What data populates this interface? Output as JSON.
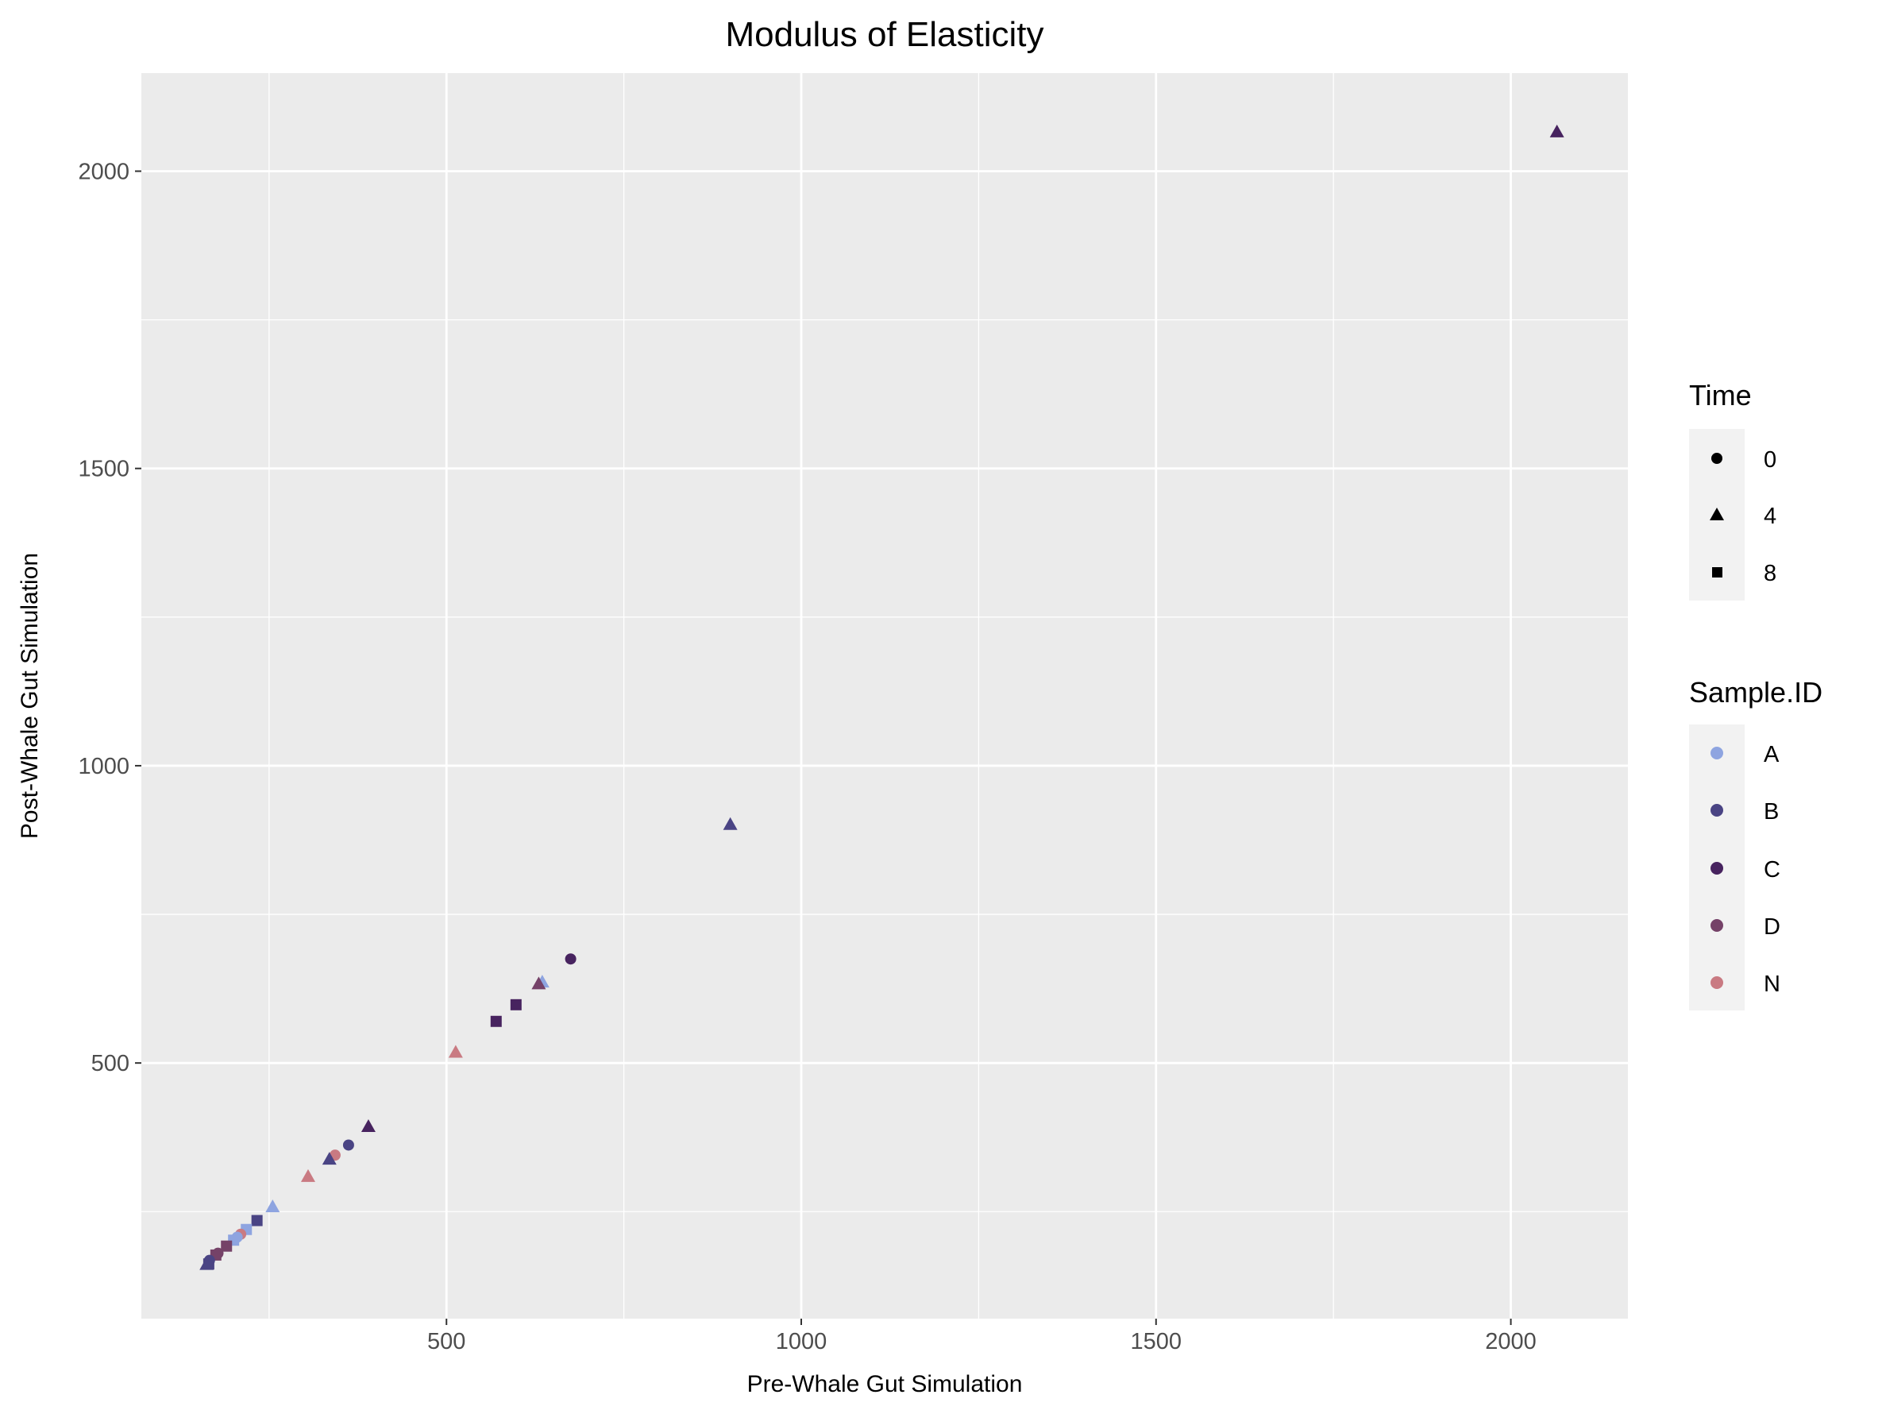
{
  "chart_data": {
    "type": "scatter",
    "title": "Modulus of Elasticity",
    "xlabel": "Pre-Whale Gut Simulation",
    "ylabel": "Post-Whale Gut Simulation",
    "xlim": [
      70,
      2165
    ],
    "ylim": [
      70,
      2165
    ],
    "x_ticks": [
      500,
      1000,
      1500,
      2000
    ],
    "y_ticks": [
      500,
      1000,
      1500,
      2000
    ],
    "x_minor": [
      250,
      750,
      1250,
      1750
    ],
    "y_minor": [
      250,
      750,
      1250,
      1750
    ],
    "grid": true,
    "panel_background": "#ebebeb",
    "legend_position": "right",
    "shape_legend": {
      "title": "Time",
      "entries": [
        {
          "label": "0",
          "shape": "circle"
        },
        {
          "label": "4",
          "shape": "triangle"
        },
        {
          "label": "8",
          "shape": "square"
        }
      ]
    },
    "color_legend": {
      "title": "Sample.ID",
      "entries": [
        {
          "label": "A",
          "color": "#8ea4e0"
        },
        {
          "label": "B",
          "color": "#4a4484"
        },
        {
          "label": "C",
          "color": "#47235f"
        },
        {
          "label": "D",
          "color": "#754268"
        },
        {
          "label": "N",
          "color": "#c97a82"
        }
      ]
    },
    "points": [
      {
        "x": 2065,
        "y": 2065,
        "time": "4",
        "id": "C"
      },
      {
        "x": 900,
        "y": 900,
        "time": "4",
        "id": "B"
      },
      {
        "x": 675,
        "y": 675,
        "time": "0",
        "id": "C"
      },
      {
        "x": 635,
        "y": 635,
        "time": "4",
        "id": "A"
      },
      {
        "x": 630,
        "y": 632,
        "time": "4",
        "id": "D"
      },
      {
        "x": 598,
        "y": 598,
        "time": "8",
        "id": "C"
      },
      {
        "x": 570,
        "y": 570,
        "time": "8",
        "id": "C"
      },
      {
        "x": 513,
        "y": 517,
        "time": "4",
        "id": "N"
      },
      {
        "x": 390,
        "y": 392,
        "time": "4",
        "id": "C"
      },
      {
        "x": 362,
        "y": 362,
        "time": "0",
        "id": "B"
      },
      {
        "x": 343,
        "y": 345,
        "time": "0",
        "id": "N"
      },
      {
        "x": 335,
        "y": 337,
        "time": "4",
        "id": "B"
      },
      {
        "x": 305,
        "y": 308,
        "time": "4",
        "id": "N"
      },
      {
        "x": 255,
        "y": 257,
        "time": "4",
        "id": "A"
      },
      {
        "x": 233,
        "y": 235,
        "time": "8",
        "id": "B"
      },
      {
        "x": 218,
        "y": 220,
        "time": "8",
        "id": "A"
      },
      {
        "x": 210,
        "y": 212,
        "time": "0",
        "id": "N"
      },
      {
        "x": 205,
        "y": 207,
        "time": "0",
        "id": "A"
      },
      {
        "x": 200,
        "y": 202,
        "time": "8",
        "id": "A"
      },
      {
        "x": 190,
        "y": 192,
        "time": "8",
        "id": "D"
      },
      {
        "x": 178,
        "y": 180,
        "time": "0",
        "id": "D"
      },
      {
        "x": 175,
        "y": 177,
        "time": "8",
        "id": "D"
      },
      {
        "x": 166,
        "y": 168,
        "time": "0",
        "id": "B"
      },
      {
        "x": 162,
        "y": 160,
        "time": "4",
        "id": "B"
      },
      {
        "x": 165,
        "y": 162,
        "time": "8",
        "id": "B"
      }
    ]
  }
}
